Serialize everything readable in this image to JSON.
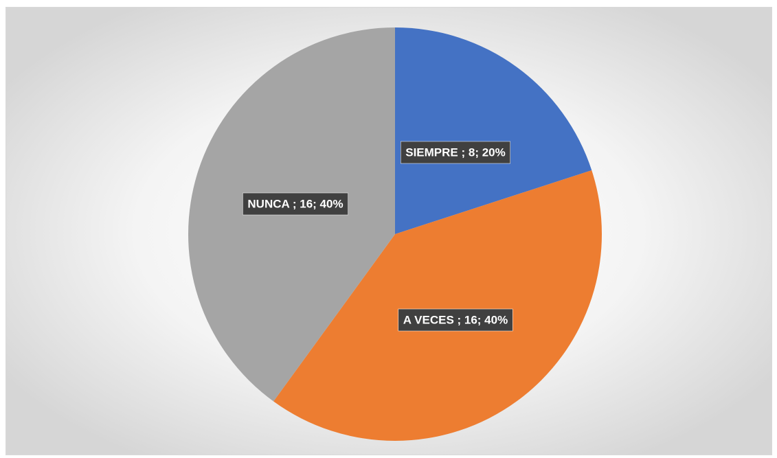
{
  "chart_data": {
    "type": "pie",
    "categories": [
      "SIEMPRE",
      "A VECES",
      "NUNCA"
    ],
    "values": [
      8,
      16,
      16
    ],
    "value_labels": [
      "SIEMPRE ; 8; 20%",
      "A VECES ; 16; 40%",
      "NUNCA ; 16; 40%"
    ],
    "colors": [
      "#4472c4",
      "#ed7d31",
      "#a5a5a5"
    ]
  }
}
